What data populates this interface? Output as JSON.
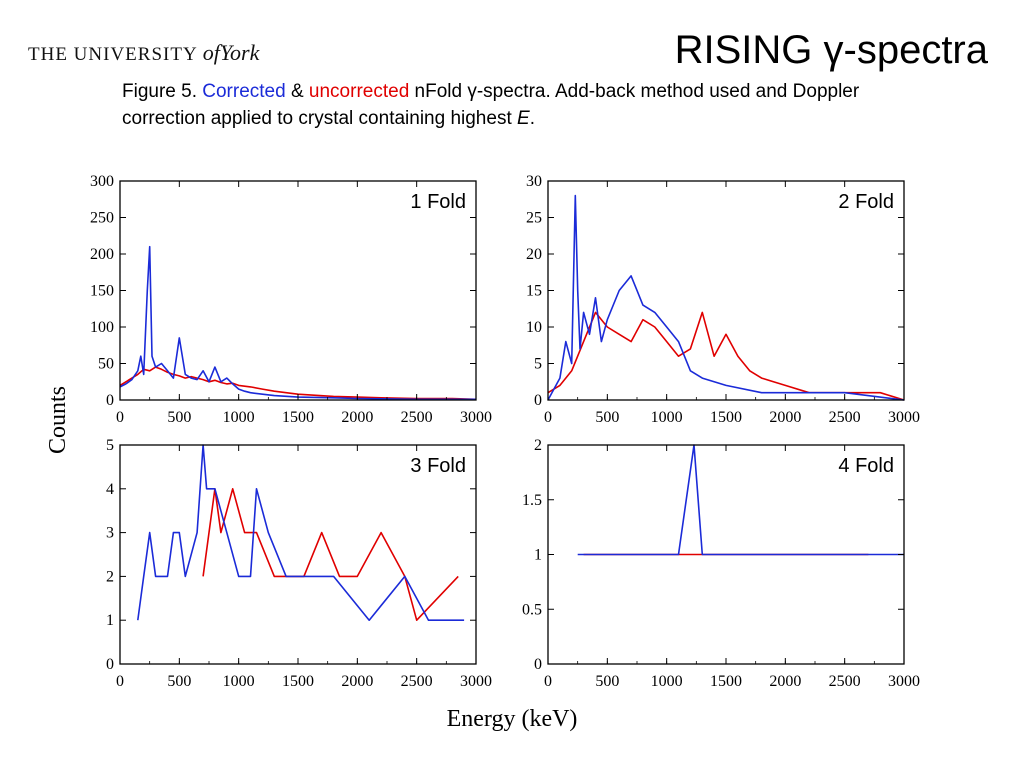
{
  "header": {
    "logo_prefix": "THE UNIVERSITY",
    "logo_of": "of",
    "logo_york": "York",
    "title": "RISING γ-spectra"
  },
  "caption": {
    "prefix": "Figure 5. ",
    "corrected": "Corrected",
    "amp": " & ",
    "uncorrected": "uncorrected",
    "rest": " nFold γ-spectra. Add-back method used and Doppler correction applied to crystal containing highest ",
    "italic": "E",
    "end": "."
  },
  "colors": {
    "corrected": "#1b2bd8",
    "uncorrected": "#e00000"
  },
  "chart_data": [
    {
      "type": "line",
      "panel_label": "1 Fold",
      "xlabel": "Energy (keV)",
      "ylabel": "Counts",
      "xlim": [
        0,
        3000
      ],
      "ylim": [
        0,
        300
      ],
      "xticks": [
        0,
        500,
        1000,
        1500,
        2000,
        2500,
        3000
      ],
      "yticks": [
        0,
        50,
        100,
        150,
        200,
        250,
        300
      ],
      "series": [
        {
          "color": "#e00000",
          "x": [
            0,
            50,
            100,
            150,
            200,
            250,
            300,
            350,
            400,
            450,
            500,
            550,
            600,
            650,
            700,
            750,
            800,
            850,
            900,
            950,
            1000,
            1100,
            1200,
            1300,
            1400,
            1500,
            1600,
            1800,
            2000,
            2200,
            2500,
            2800,
            3000
          ],
          "y": [
            20,
            25,
            30,
            35,
            42,
            40,
            45,
            42,
            38,
            35,
            33,
            30,
            32,
            30,
            28,
            25,
            27,
            24,
            22,
            23,
            20,
            18,
            15,
            12,
            10,
            8,
            7,
            5,
            4,
            3,
            2,
            2,
            1
          ]
        },
        {
          "color": "#1b2bd8",
          "x": [
            0,
            50,
            100,
            150,
            175,
            200,
            230,
            250,
            270,
            300,
            350,
            400,
            450,
            500,
            550,
            600,
            650,
            700,
            750,
            800,
            850,
            900,
            950,
            1000,
            1050,
            1100,
            1200,
            1300,
            1500,
            1800,
            2000,
            2500,
            3000
          ],
          "y": [
            18,
            22,
            28,
            40,
            60,
            35,
            150,
            210,
            60,
            45,
            50,
            40,
            30,
            85,
            35,
            30,
            28,
            40,
            25,
            45,
            25,
            30,
            22,
            15,
            12,
            10,
            8,
            6,
            4,
            3,
            2,
            1,
            1
          ]
        }
      ]
    },
    {
      "type": "line",
      "panel_label": "2 Fold",
      "xlim": [
        0,
        3000
      ],
      "ylim": [
        0,
        30
      ],
      "xticks": [
        0,
        500,
        1000,
        1500,
        2000,
        2500,
        3000
      ],
      "yticks": [
        0,
        5,
        10,
        15,
        20,
        25,
        30
      ],
      "series": [
        {
          "color": "#e00000",
          "x": [
            0,
            100,
            200,
            300,
            400,
            500,
            600,
            700,
            800,
            900,
            1000,
            1100,
            1200,
            1300,
            1400,
            1500,
            1600,
            1700,
            1800,
            2000,
            2200,
            2500,
            2800,
            3000
          ],
          "y": [
            1,
            2,
            4,
            8,
            12,
            10,
            9,
            8,
            11,
            10,
            8,
            6,
            7,
            12,
            6,
            9,
            6,
            4,
            3,
            2,
            1,
            1,
            1,
            0
          ]
        },
        {
          "color": "#1b2bd8",
          "x": [
            0,
            100,
            150,
            200,
            230,
            250,
            270,
            300,
            350,
            400,
            450,
            500,
            600,
            700,
            800,
            900,
            1000,
            1100,
            1200,
            1300,
            1500,
            1800,
            2000,
            2500,
            3000
          ],
          "y": [
            0,
            3,
            8,
            5,
            28,
            15,
            7,
            12,
            9,
            14,
            8,
            11,
            15,
            17,
            13,
            12,
            10,
            8,
            4,
            3,
            2,
            1,
            1,
            1,
            0
          ]
        }
      ]
    },
    {
      "type": "line",
      "panel_label": "3 Fold",
      "xlim": [
        0,
        3000
      ],
      "ylim": [
        0,
        5
      ],
      "xticks": [
        0,
        500,
        1000,
        1500,
        2000,
        2500,
        3000
      ],
      "yticks": [
        0,
        1,
        2,
        3,
        4,
        5
      ],
      "series": [
        {
          "color": "#e00000",
          "x": [
            700,
            800,
            850,
            950,
            1050,
            1150,
            1300,
            1450,
            1550,
            1700,
            1850,
            2000,
            2200,
            2400,
            2500,
            2850
          ],
          "y": [
            2,
            4,
            3,
            4,
            3,
            3,
            2,
            2,
            2,
            3,
            2,
            2,
            3,
            2,
            1,
            2
          ]
        },
        {
          "color": "#1b2bd8",
          "x": [
            150,
            200,
            250,
            300,
            400,
            450,
            500,
            550,
            650,
            700,
            730,
            800,
            900,
            1000,
            1100,
            1150,
            1250,
            1400,
            1550,
            1800,
            2100,
            2400,
            2600,
            2900
          ],
          "y": [
            1,
            2,
            3,
            2,
            2,
            3,
            3,
            2,
            3,
            5,
            4,
            4,
            3,
            2,
            2,
            4,
            3,
            2,
            2,
            2,
            1,
            2,
            1,
            1
          ]
        }
      ]
    },
    {
      "type": "line",
      "panel_label": "4 Fold",
      "xlim": [
        0,
        3000
      ],
      "ylim": [
        0,
        2
      ],
      "xticks": [
        0,
        500,
        1000,
        1500,
        2000,
        2500,
        3000
      ],
      "yticks": [
        0,
        0.5,
        1,
        1.5,
        2
      ],
      "series": [
        {
          "color": "#e00000",
          "x": [
            300,
            380,
            430,
            480,
            560,
            700,
            850,
            1000,
            1150,
            1330,
            1420,
            1550,
            1700,
            1800,
            1950,
            2050,
            2250,
            2400,
            2600,
            2700
          ],
          "y": [
            1,
            1,
            1,
            1,
            1,
            1,
            1,
            1,
            1,
            1,
            1,
            1,
            1,
            1,
            1,
            1,
            1,
            1,
            1,
            1
          ]
        },
        {
          "color": "#1b2bd8",
          "x": [
            250,
            280,
            520,
            600,
            650,
            750,
            800,
            900,
            950,
            1050,
            1100,
            1230,
            1300,
            1450,
            1500,
            1600,
            1900,
            2000,
            2300,
            2650,
            3000
          ],
          "y": [
            1,
            1,
            1,
            1,
            1,
            1,
            1,
            1,
            1,
            1,
            1,
            2,
            1,
            1,
            1,
            1,
            1,
            1,
            1,
            1,
            1
          ]
        }
      ]
    }
  ]
}
